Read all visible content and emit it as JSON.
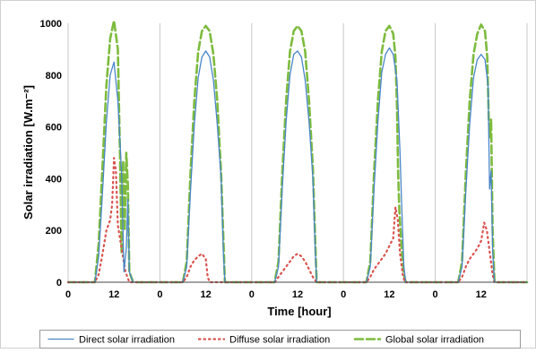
{
  "chart_data": {
    "type": "line",
    "title": "",
    "xlabel": "Time [hour]",
    "ylabel": "Solar irradiation [W.m⁻²]",
    "ylim": [
      0,
      1000
    ],
    "yticks": [
      "0",
      "200",
      "400",
      "600",
      "800",
      "1000"
    ],
    "xlim": [
      0,
      120
    ],
    "xtick_labels": [
      "0",
      "12",
      "0",
      "12",
      "0",
      "12",
      "0",
      "12",
      "0",
      "12"
    ],
    "grid": "vertical lines at each day boundary",
    "legend_position": "bottom",
    "series": [
      {
        "name": "Direct solar irradiation",
        "color": "#4a86c8",
        "style": "solid",
        "points": [
          [
            0,
            0
          ],
          [
            6,
            0
          ],
          [
            7,
            0
          ],
          [
            8,
            100
          ],
          [
            9,
            350
          ],
          [
            10,
            620
          ],
          [
            11,
            800
          ],
          [
            12,
            850
          ],
          [
            13,
            700
          ],
          [
            14,
            420
          ],
          [
            14.6,
            40
          ],
          [
            15.2,
            130
          ],
          [
            15.6,
            320
          ],
          [
            16,
            40
          ],
          [
            17,
            0
          ],
          [
            24,
            0
          ],
          [
            30,
            0
          ],
          [
            31,
            60
          ],
          [
            32,
            350
          ],
          [
            33,
            610
          ],
          [
            34,
            790
          ],
          [
            35,
            870
          ],
          [
            36,
            893
          ],
          [
            37,
            870
          ],
          [
            38,
            780
          ],
          [
            39,
            610
          ],
          [
            40,
            400
          ],
          [
            40.6,
            120
          ],
          [
            41,
            0
          ],
          [
            48,
            0
          ],
          [
            54,
            0
          ],
          [
            55,
            60
          ],
          [
            56,
            360
          ],
          [
            57,
            620
          ],
          [
            58,
            800
          ],
          [
            59,
            880
          ],
          [
            60,
            893
          ],
          [
            61,
            870
          ],
          [
            62,
            780
          ],
          [
            63,
            620
          ],
          [
            64,
            400
          ],
          [
            64.6,
            130
          ],
          [
            65,
            0
          ],
          [
            72,
            0
          ],
          [
            78,
            0
          ],
          [
            79,
            60
          ],
          [
            80,
            360
          ],
          [
            81,
            620
          ],
          [
            82,
            810
          ],
          [
            83,
            880
          ],
          [
            84,
            905
          ],
          [
            85,
            880
          ],
          [
            86,
            780
          ],
          [
            86.8,
            500
          ],
          [
            87.2,
            300
          ],
          [
            87.8,
            60
          ],
          [
            88.3,
            0
          ],
          [
            96,
            0
          ],
          [
            102,
            0
          ],
          [
            103,
            60
          ],
          [
            104,
            350
          ],
          [
            105,
            610
          ],
          [
            106,
            790
          ],
          [
            107,
            860
          ],
          [
            108,
            880
          ],
          [
            109,
            860
          ],
          [
            109.8,
            760
          ],
          [
            110.2,
            360
          ],
          [
            110.6,
            430
          ],
          [
            111,
            120
          ],
          [
            111.5,
            0
          ],
          [
            120,
            0
          ]
        ]
      },
      {
        "name": "Diffuse solar irradiation",
        "color": "#d9534f",
        "style": "dotted",
        "points": [
          [
            0,
            0
          ],
          [
            6,
            0
          ],
          [
            7,
            0
          ],
          [
            8,
            30
          ],
          [
            9,
            110
          ],
          [
            10,
            200
          ],
          [
            11,
            240
          ],
          [
            11.5,
            300
          ],
          [
            12,
            480
          ],
          [
            12.5,
            430
          ],
          [
            13,
            220
          ],
          [
            14,
            130
          ],
          [
            15,
            40
          ],
          [
            16,
            0
          ],
          [
            24,
            0
          ],
          [
            30,
            0
          ],
          [
            31,
            20
          ],
          [
            32,
            60
          ],
          [
            33,
            85
          ],
          [
            34,
            100
          ],
          [
            35,
            110
          ],
          [
            36,
            90
          ],
          [
            36.5,
            20
          ],
          [
            37,
            0
          ],
          [
            48,
            0
          ],
          [
            54,
            0
          ],
          [
            55,
            20
          ],
          [
            56,
            40
          ],
          [
            57,
            60
          ],
          [
            58,
            80
          ],
          [
            59,
            100
          ],
          [
            60,
            110
          ],
          [
            61,
            100
          ],
          [
            62,
            80
          ],
          [
            63,
            50
          ],
          [
            64,
            20
          ],
          [
            65,
            0
          ],
          [
            72,
            0
          ],
          [
            78,
            0
          ],
          [
            79,
            20
          ],
          [
            80,
            50
          ],
          [
            81,
            70
          ],
          [
            82,
            90
          ],
          [
            83,
            110
          ],
          [
            84,
            140
          ],
          [
            85,
            170
          ],
          [
            85.6,
            290
          ],
          [
            86.2,
            240
          ],
          [
            86.8,
            110
          ],
          [
            87.5,
            30
          ],
          [
            88,
            0
          ],
          [
            96,
            0
          ],
          [
            102,
            0
          ],
          [
            103,
            20
          ],
          [
            104,
            60
          ],
          [
            105,
            90
          ],
          [
            106,
            110
          ],
          [
            107,
            130
          ],
          [
            108,
            160
          ],
          [
            108.8,
            230
          ],
          [
            109.5,
            200
          ],
          [
            110.2,
            120
          ],
          [
            111,
            30
          ],
          [
            111.5,
            0
          ],
          [
            120,
            0
          ]
        ]
      },
      {
        "name": "Global solar irradiation",
        "color": "#7dbb3e",
        "style": "dashed",
        "points": [
          [
            0,
            0
          ],
          [
            6,
            0
          ],
          [
            7,
            0
          ],
          [
            8,
            150
          ],
          [
            9,
            450
          ],
          [
            10,
            760
          ],
          [
            11,
            940
          ],
          [
            12,
            1010
          ],
          [
            13,
            900
          ],
          [
            13.6,
            470
          ],
          [
            14,
            110
          ],
          [
            14.4,
            470
          ],
          [
            14.8,
            200
          ],
          [
            15.2,
            500
          ],
          [
            15.6,
            380
          ],
          [
            16,
            40
          ],
          [
            17,
            0
          ],
          [
            24,
            0
          ],
          [
            30,
            0
          ],
          [
            31,
            80
          ],
          [
            32,
            420
          ],
          [
            33,
            700
          ],
          [
            34,
            890
          ],
          [
            35,
            970
          ],
          [
            36,
            990
          ],
          [
            37,
            970
          ],
          [
            38,
            880
          ],
          [
            39,
            700
          ],
          [
            40,
            420
          ],
          [
            40.7,
            120
          ],
          [
            41,
            0
          ],
          [
            48,
            0
          ],
          [
            54,
            0
          ],
          [
            55,
            80
          ],
          [
            56,
            420
          ],
          [
            57,
            700
          ],
          [
            58,
            890
          ],
          [
            59,
            970
          ],
          [
            60,
            990
          ],
          [
            61,
            970
          ],
          [
            62,
            890
          ],
          [
            63,
            700
          ],
          [
            64,
            440
          ],
          [
            64.7,
            120
          ],
          [
            65,
            0
          ],
          [
            72,
            0
          ],
          [
            78,
            0
          ],
          [
            79,
            80
          ],
          [
            80,
            420
          ],
          [
            81,
            700
          ],
          [
            82,
            890
          ],
          [
            83,
            970
          ],
          [
            84,
            990
          ],
          [
            85,
            960
          ],
          [
            85.6,
            870
          ],
          [
            86,
            680
          ],
          [
            86.3,
            420
          ],
          [
            86.6,
            280
          ],
          [
            87.2,
            130
          ],
          [
            87.8,
            30
          ],
          [
            88.3,
            0
          ],
          [
            96,
            0
          ],
          [
            102,
            0
          ],
          [
            103,
            80
          ],
          [
            104,
            420
          ],
          [
            105,
            700
          ],
          [
            106,
            880
          ],
          [
            107,
            960
          ],
          [
            108,
            995
          ],
          [
            109,
            970
          ],
          [
            109.6,
            870
          ],
          [
            110,
            630
          ],
          [
            110.3,
            560
          ],
          [
            110.6,
            630
          ],
          [
            111,
            200
          ],
          [
            111.5,
            0
          ],
          [
            120,
            0
          ]
        ]
      }
    ]
  }
}
